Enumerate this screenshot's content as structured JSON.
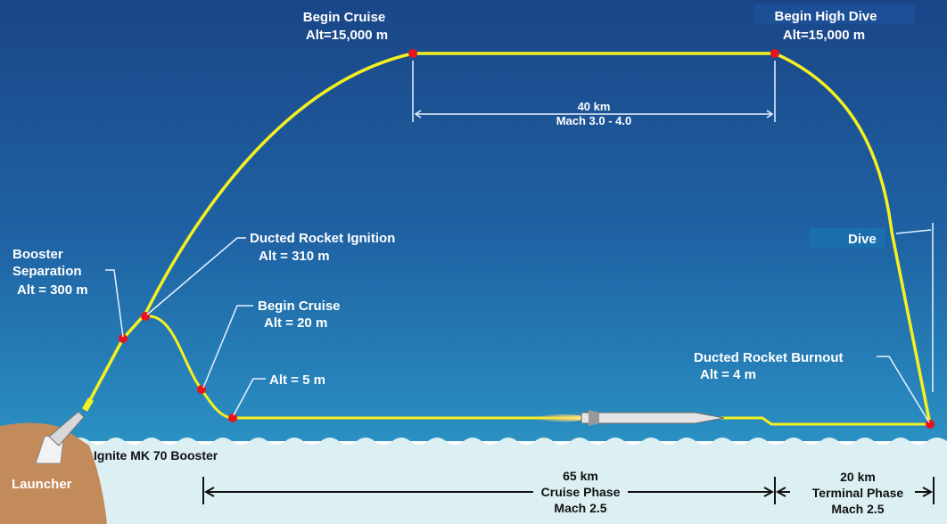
{
  "title_labels": {
    "begin_cruise_high": {
      "line1": "Begin Cruise",
      "line2": "Alt=15,000 m"
    },
    "begin_high_dive": {
      "line1": "Begin High Dive",
      "line2": "Alt=15,000 m"
    },
    "cruise_segment": {
      "line1": "40 km",
      "line2": "Mach 3.0 - 4.0"
    },
    "booster_separation": {
      "line1": "Booster",
      "line2": "Separation",
      "line3": "Alt = 300 m"
    },
    "ducted_rocket_ignition": {
      "line1": "Ducted Rocket Ignition",
      "line2": "Alt = 310 m"
    },
    "begin_cruise_low": {
      "line1": "Begin Cruise",
      "line2": "Alt = 20 m"
    },
    "alt_5m": {
      "line1": "Alt = 5 m"
    },
    "dive": {
      "line1": "Dive"
    },
    "ducted_rocket_burnout": {
      "line1": "Ducted Rocket Burnout",
      "line2": "Alt = 4 m"
    },
    "ignite_booster": {
      "line1": "Ignite MK 70 Booster"
    },
    "launcher": {
      "line1": "Launcher"
    }
  },
  "phases": {
    "cruise": {
      "line1": "65 km",
      "line2": "Cruise Phase",
      "line3": "Mach 2.5"
    },
    "terminal": {
      "line1": "20 km",
      "line2": "Terminal Phase",
      "line3": "Mach 2.5"
    }
  },
  "colors": {
    "trajectory": "#f5f020",
    "waypoint": "#e8141c",
    "sky_top": "#1a4688",
    "sky_bottom": "#2a8cc0",
    "sea": "#dcf0f4",
    "land": "#c38a5a"
  }
}
